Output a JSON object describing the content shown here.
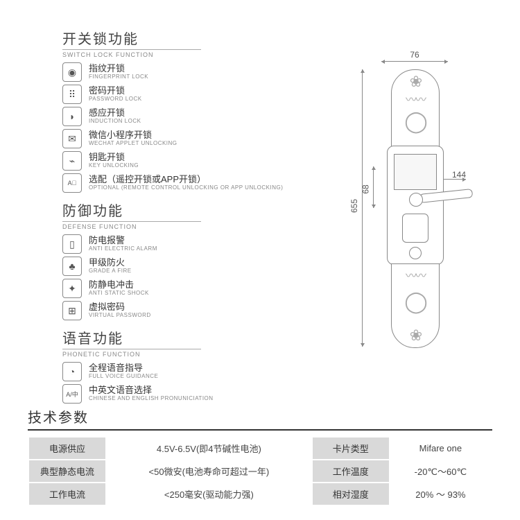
{
  "sections": {
    "switch": {
      "title_cn": "开关锁功能",
      "title_en": "SWITCH LOCK FUNCTION"
    },
    "defense": {
      "title_cn": "防御功能",
      "title_en": "DEFENSE FUNCTION"
    },
    "phonetic": {
      "title_cn": "语音功能",
      "title_en": "PHONETIC FUNCTION"
    }
  },
  "switch_items": [
    {
      "icon": "◉",
      "cn": "指纹开锁",
      "en": "FINGERPRINT LOCK"
    },
    {
      "icon": "⠿",
      "cn": "密码开锁",
      "en": "PASSWORD LOCK"
    },
    {
      "icon": "◗",
      "cn": "感应开锁",
      "en": "INDUCTION LOCK"
    },
    {
      "icon": "✉",
      "cn": "微信小程序开锁",
      "en": "WECHAT APPLET UNLOCKING"
    },
    {
      "icon": "⌁",
      "cn": "钥匙开锁",
      "en": "KEY UNLOCKING"
    },
    {
      "icon": "A⃣",
      "cn": "选配（遥控开锁或APP开锁）",
      "en": "OPTIONAL\n(REMOTE CONTROL UNLOCKING OR APP UNLOCKING)"
    }
  ],
  "defense_items": [
    {
      "icon": "▯",
      "cn": "防电报警",
      "en": "ANTI ELECTRIC ALARM"
    },
    {
      "icon": "♣",
      "cn": "甲级防火",
      "en": "GRADE A FIRE"
    },
    {
      "icon": "✦",
      "cn": "防静电冲击",
      "en": "ANTI STATIC SHOCK"
    },
    {
      "icon": "⊞",
      "cn": "虚拟密码",
      "en": "VIRTUAL PASSWORD"
    }
  ],
  "phonetic_items": [
    {
      "icon": "◔",
      "cn": "全程语音指导",
      "en": "FULL VOICE GUIDANCE"
    },
    {
      "icon": "A/中",
      "cn": "中英文语音选择",
      "en": "CHINESE AND ENGLISH PRONUNICIATION"
    }
  ],
  "dimensions": {
    "width": "76",
    "height": "655",
    "handle_span": "144",
    "handle_height": "68"
  },
  "spec": {
    "title": "技术参数",
    "rows": [
      {
        "l1": "电源供应",
        "v1": "4.5V-6.5V(即4节碱性电池)",
        "l2": "卡片类型",
        "v2": "Mifare one"
      },
      {
        "l1": "典型静态电流",
        "v1": "<50微安(电池寿命可超过一年)",
        "l2": "工作温度",
        "v2": "-20℃～60℃"
      },
      {
        "l1": "工作电流",
        "v1": "<250毫安(驱动能力强)",
        "l2": "相对湿度",
        "v2": "20% ～ 93%"
      }
    ]
  },
  "colors": {
    "label_bg": "#d9d9d9",
    "line": "#888888",
    "text": "#333333",
    "subtext": "#888888"
  }
}
